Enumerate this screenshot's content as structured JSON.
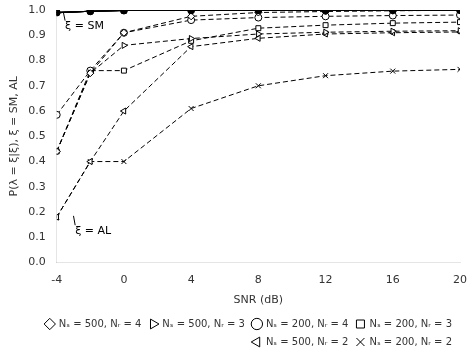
{
  "chart_data": {
    "type": "line",
    "xlabel": "SNR (dB)",
    "ylabel": "P(λ = ξ|ξ), ξ = SM, AL",
    "x": [
      -4,
      -2,
      0,
      4,
      8,
      12,
      16,
      20
    ],
    "xlim": [
      -4,
      20
    ],
    "xticks": [
      -4,
      0,
      4,
      8,
      12,
      16,
      20
    ],
    "ylim": [
      0,
      1.0
    ],
    "yticks": [
      {
        "value": 0,
        "label": "0.0"
      },
      0.1,
      0.2,
      0.3,
      0.4,
      0.5,
      0.6,
      0.7,
      0.8,
      0.9,
      {
        "value": 1.0,
        "label": "1.0"
      }
    ],
    "grid": false,
    "legend": "lower right",
    "series": [
      {
        "color": "black",
        "marker": "diamond",
        "line_style": "solid",
        "values": [
          0.99,
          0.995,
          0.998,
          0.999,
          0.9993,
          0.9995,
          0.9996,
          0.9997
        ]
      },
      {
        "color": "black",
        "marker": "triangle_right",
        "line_style": "solid",
        "values": [
          0.99,
          0.995,
          0.998,
          0.999,
          0.9993,
          0.9995,
          0.9996,
          0.9997
        ]
      },
      {
        "color": "black",
        "marker": "circle",
        "line_style": "solid",
        "values": [
          0.99,
          0.995,
          0.998,
          0.999,
          0.9993,
          0.9995,
          0.9996,
          0.9997
        ]
      },
      {
        "color": "black",
        "marker": "square",
        "line_style": "solid",
        "values": [
          0.99,
          0.995,
          0.998,
          0.999,
          0.9993,
          0.9995,
          0.9996,
          0.9997
        ]
      },
      {
        "color": "black",
        "marker": "triangle_left",
        "line_style": "solid",
        "values": [
          0.99,
          0.995,
          0.998,
          0.999,
          0.9993,
          0.9995,
          0.9996,
          0.9997
        ]
      },
      {
        "color": "black",
        "marker": "x",
        "line_style": "solid",
        "values": [
          0.99,
          0.995,
          0.998,
          0.999,
          0.9993,
          0.9995,
          0.9996,
          0.9997
        ]
      },
      {
        "name": "Nₛ = 500, Nᵣ = 4",
        "color": "black",
        "marker": "diamond",
        "line_style": "dashed",
        "values": [
          0.44,
          0.75,
          0.91,
          0.975,
          0.99,
          0.994,
          0.997,
          0.999
        ]
      },
      {
        "name": "Nₛ = 500, Nᵣ = 3",
        "color": "black",
        "marker": "triangle_right",
        "line_style": "dashed",
        "values": [
          0.44,
          0.75,
          0.86,
          0.887,
          0.905,
          0.912,
          0.916,
          0.918
        ]
      },
      {
        "name": "Nₛ = 200, Nᵣ = 4",
        "color": "black",
        "marker": "circle",
        "line_style": "dashed",
        "values": [
          0.585,
          0.76,
          0.91,
          0.96,
          0.97,
          0.975,
          0.978,
          0.98
        ]
      },
      {
        "name": "Nₛ = 200, Nᵣ = 3",
        "color": "black",
        "marker": "square",
        "line_style": "dashed",
        "values": [
          0.44,
          0.76,
          0.76,
          0.878,
          0.928,
          0.94,
          0.948,
          0.952
        ]
      },
      {
        "name": "Nₛ = 500, Nᵣ = 2",
        "color": "black",
        "marker": "triangle_left",
        "line_style": "dashed",
        "values": [
          0.18,
          0.4,
          0.6,
          0.855,
          0.888,
          0.905,
          0.91,
          0.913
        ]
      },
      {
        "name": "Nₛ = 200, Nᵣ = 2",
        "color": "black",
        "marker": "x",
        "line_style": "dashed",
        "values": [
          0.18,
          0.4,
          0.4,
          0.61,
          0.7,
          0.74,
          0.758,
          0.765
        ]
      }
    ],
    "annotations": [
      {
        "text": "ξ = SM",
        "x": -3.5,
        "y": 0.958,
        "arrow_x": -3.6,
        "arrow_y": 0.99
      },
      {
        "text": "ξ = AL",
        "x": -2.9,
        "y": 0.148,
        "arrow_x": -3.0,
        "arrow_y": 0.185
      }
    ]
  }
}
